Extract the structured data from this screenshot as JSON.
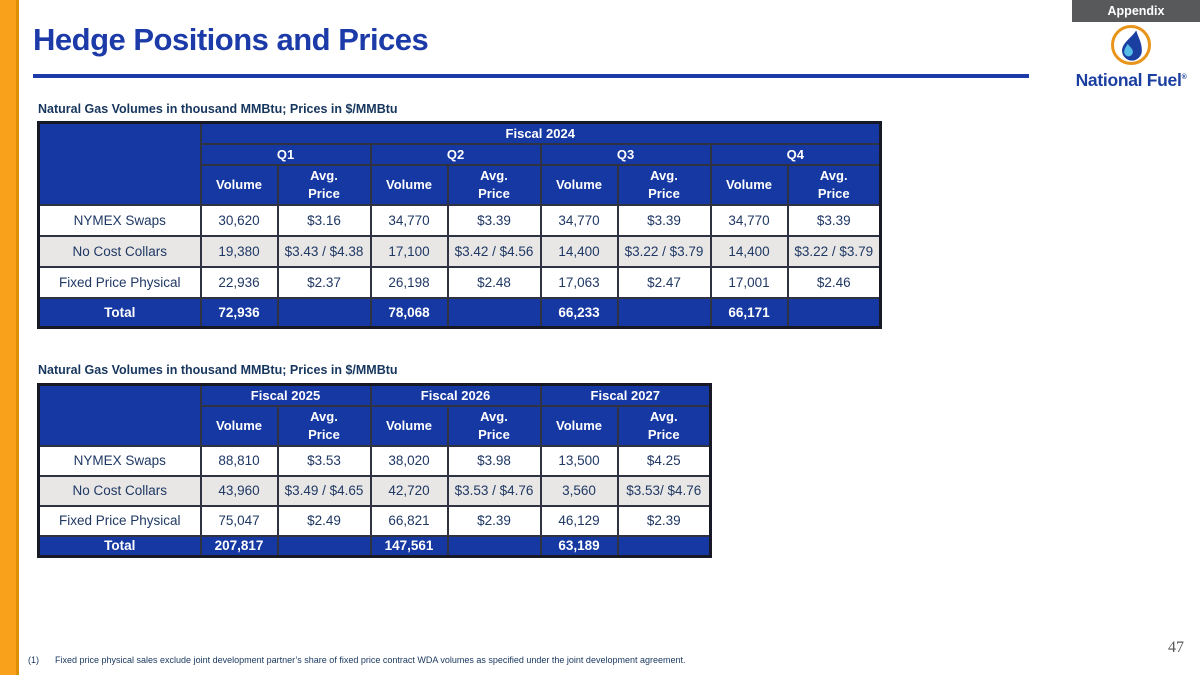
{
  "slide": {
    "appendix_label": "Appendix",
    "title": "Hedge Positions and Prices",
    "page_number": "47",
    "footnote_marker": "(1)",
    "footnote_text": "Fixed price physical sales exclude joint development partner’s share of fixed price contract WDA volumes as specified under the joint development agreement.",
    "logo": {
      "brand": "National Fuel",
      "registered": "®"
    }
  },
  "colors": {
    "accent_orange": "#F9A11B",
    "brand_blue": "#1B3FA0",
    "header_blue": "#1638A2",
    "title_blue": "#1C3BA8",
    "navy_text": "#1F3864",
    "row_shade": "#E8E7E5",
    "appendix_gray": "#58595B"
  },
  "table1": {
    "caption": "Natural Gas Volumes in thousand MMBtu; Prices in $/MMBtu",
    "header": {
      "fiscal": "Fiscal 2024",
      "quarters": [
        "Q1",
        "Q2",
        "Q3",
        "Q4"
      ],
      "volume_label": "Volume",
      "price_label": "Avg.\nPrice"
    },
    "rows": [
      {
        "label": "NYMEX Swaps",
        "cells": [
          "30,620",
          "$3.16",
          "34,770",
          "$3.39",
          "34,770",
          "$3.39",
          "34,770",
          "$3.39"
        ]
      },
      {
        "label": "No Cost Collars",
        "cells": [
          "19,380",
          "$3.43 / $4.38",
          "17,100",
          "$3.42 / $4.56",
          "14,400",
          "$3.22 / $3.79",
          "14,400",
          "$3.22 / $3.79"
        ]
      },
      {
        "label": "Fixed Price Physical",
        "cells": [
          "22,936",
          "$2.37",
          "26,198",
          "$2.48",
          "17,063",
          "$2.47",
          "17,001",
          "$2.46"
        ]
      }
    ],
    "total": {
      "label": "Total",
      "cells": [
        "72,936",
        "",
        "78,068",
        "",
        "66,233",
        "",
        "66,171",
        ""
      ]
    }
  },
  "table2": {
    "caption": "Natural Gas Volumes in thousand MMBtu; Prices in $/MMBtu",
    "header": {
      "fiscals": [
        "Fiscal 2025",
        "Fiscal 2026",
        "Fiscal 2027"
      ],
      "volume_label": "Volume",
      "price_label": "Avg.\nPrice"
    },
    "rows": [
      {
        "label": "NYMEX Swaps",
        "cells": [
          "88,810",
          "$3.53",
          "38,020",
          "$3.98",
          "13,500",
          "$4.25"
        ]
      },
      {
        "label": "No Cost Collars",
        "cells": [
          "43,960",
          "$3.49 / $4.65",
          "42,720",
          "$3.53 / $4.76",
          "3,560",
          "$3.53/ $4.76"
        ]
      },
      {
        "label": "Fixed Price Physical",
        "cells": [
          "75,047",
          "$2.49",
          "66,821",
          "$2.39",
          "46,129",
          "$2.39"
        ]
      }
    ],
    "total": {
      "label": "Total",
      "cells": [
        "207,817",
        "",
        "147,561",
        "",
        "63,189",
        ""
      ]
    }
  }
}
